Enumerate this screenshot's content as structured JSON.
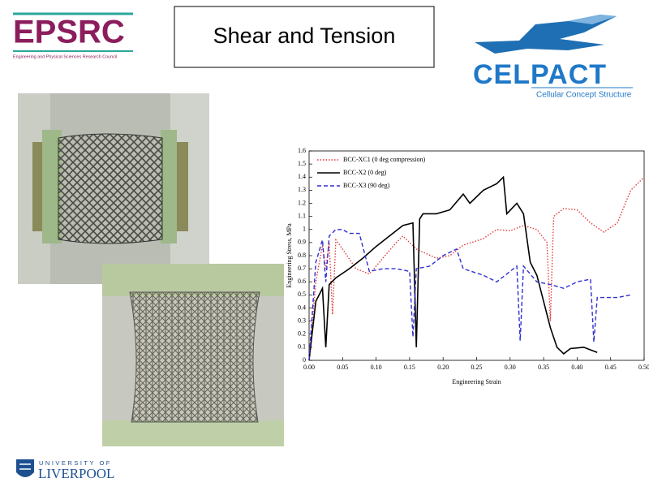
{
  "header": {
    "funder": "EPSRC",
    "funder_subtitle": "Engineering and Physical Sciences Research Council",
    "title": "Shear and Tension",
    "project": "CELPACT",
    "project_subtitle": "Cellular Concept Structure"
  },
  "chart_data": {
    "type": "line",
    "x_label": "Engineering Strain",
    "y_label": "Engineering Stress, MPa",
    "xlim": [
      0,
      0.5
    ],
    "ylim": [
      0,
      1.6
    ],
    "xticks": [
      {
        "value": 0,
        "label": "0.00"
      },
      {
        "value": 0.05,
        "label": "0.05"
      },
      {
        "value": 0.1,
        "label": "0.10"
      },
      {
        "value": 0.15,
        "label": "0.15"
      },
      {
        "value": 0.2,
        "label": "0.20"
      },
      {
        "value": 0.25,
        "label": "0.25"
      },
      {
        "value": 0.3,
        "label": "0.30"
      },
      {
        "value": 0.35,
        "label": "0.35"
      },
      {
        "value": 0.4,
        "label": "0.40"
      },
      {
        "value": 0.45,
        "label": "0.45"
      },
      {
        "value": 0.5,
        "label": "0.50"
      }
    ],
    "yticks": [
      0,
      0.1,
      0.2,
      0.3,
      0.4,
      0.5,
      0.6,
      0.7,
      0.8,
      0.9,
      1,
      1.1,
      1.2,
      1.3,
      1.4,
      1.5,
      1.6
    ],
    "legend": "upper left",
    "series": [
      {
        "name": "BCC-XC1 (0 deg compression)",
        "color": "#e03a3a",
        "dash": "dotted",
        "x": [
          0,
          0.01,
          0.02,
          0.025,
          0.03,
          0.035,
          0.04,
          0.05,
          0.07,
          0.09,
          0.11,
          0.13,
          0.14,
          0.16,
          0.19,
          0.21,
          0.23,
          0.26,
          0.28,
          0.3,
          0.32,
          0.34,
          0.355,
          0.36,
          0.365,
          0.38,
          0.4,
          0.42,
          0.44,
          0.46,
          0.48,
          0.5
        ],
        "values": [
          0,
          0.6,
          0.88,
          0.7,
          0.9,
          0.35,
          0.92,
          0.85,
          0.7,
          0.66,
          0.78,
          0.9,
          0.95,
          0.85,
          0.78,
          0.8,
          0.88,
          0.93,
          1.0,
          0.99,
          1.03,
          1.0,
          0.9,
          0.3,
          1.1,
          1.16,
          1.15,
          1.05,
          0.98,
          1.05,
          1.3,
          1.4
        ]
      },
      {
        "name": "BCC-X2 (0 deg)",
        "color": "#000000",
        "dash": "solid",
        "x": [
          0,
          0.01,
          0.02,
          0.025,
          0.03,
          0.04,
          0.06,
          0.08,
          0.1,
          0.12,
          0.14,
          0.155,
          0.16,
          0.165,
          0.17,
          0.19,
          0.21,
          0.23,
          0.24,
          0.26,
          0.28,
          0.29,
          0.295,
          0.31,
          0.32,
          0.33,
          0.34,
          0.35,
          0.36,
          0.37,
          0.38,
          0.39,
          0.41,
          0.42,
          0.43
        ],
        "values": [
          0,
          0.45,
          0.55,
          0.1,
          0.58,
          0.63,
          0.7,
          0.78,
          0.87,
          0.95,
          1.03,
          1.05,
          0.1,
          1.08,
          1.12,
          1.12,
          1.15,
          1.27,
          1.2,
          1.3,
          1.35,
          1.4,
          1.12,
          1.2,
          1.12,
          0.75,
          0.65,
          0.45,
          0.25,
          0.1,
          0.05,
          0.09,
          0.1,
          0.08,
          0.06
        ]
      },
      {
        "name": "BCC-X3 (90 deg)",
        "color": "#2f2fd0",
        "dash": "dashed",
        "x": [
          0,
          0.01,
          0.02,
          0.025,
          0.03,
          0.04,
          0.05,
          0.06,
          0.075,
          0.09,
          0.11,
          0.13,
          0.15,
          0.155,
          0.16,
          0.18,
          0.2,
          0.22,
          0.23,
          0.26,
          0.28,
          0.3,
          0.31,
          0.315,
          0.32,
          0.34,
          0.36,
          0.38,
          0.4,
          0.42,
          0.425,
          0.43,
          0.46,
          0.48
        ],
        "values": [
          0,
          0.75,
          0.92,
          0.6,
          0.95,
          1.0,
          1.0,
          0.97,
          0.97,
          0.68,
          0.7,
          0.7,
          0.68,
          0.18,
          0.7,
          0.72,
          0.8,
          0.85,
          0.7,
          0.65,
          0.6,
          0.68,
          0.72,
          0.15,
          0.72,
          0.6,
          0.58,
          0.55,
          0.6,
          0.62,
          0.14,
          0.48,
          0.48,
          0.5
        ]
      }
    ]
  },
  "footer": {
    "university_top": "UNIVERSITY OF",
    "university": "LIVERPOOL"
  }
}
